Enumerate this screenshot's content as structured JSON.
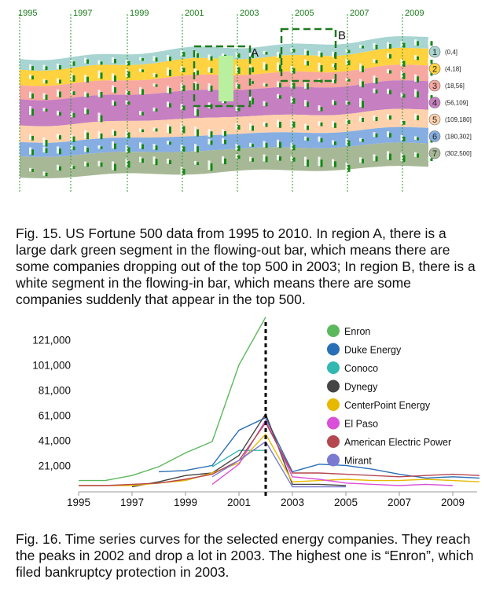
{
  "figure15": {
    "years": [
      "1995",
      "1997",
      "1999",
      "2001",
      "2003",
      "2005",
      "2007",
      "2009"
    ],
    "region_labels": [
      "A",
      "B"
    ],
    "legend": [
      {
        "num": "1",
        "range": "(0,4]",
        "color": "#a8d5d1"
      },
      {
        "num": "2",
        "range": "(4,18]",
        "color": "#ffd23f"
      },
      {
        "num": "3",
        "range": "(18,56]",
        "color": "#f7a8a0"
      },
      {
        "num": "4",
        "range": "(56,109]",
        "color": "#c67fc0"
      },
      {
        "num": "5",
        "range": "(109,180]",
        "color": "#ffd1ad"
      },
      {
        "num": "6",
        "range": "(180,302]",
        "color": "#86aee2"
      },
      {
        "num": "7",
        "range": "(302,500]",
        "color": "#a7b896"
      }
    ],
    "caption": "Fig. 15. US Fortune 500 data from 1995 to 2010. In region A, there is a large dark green segment in the flowing-out bar, which means there are some companies dropping out of the top 500 in 2003; In region B, there is a white segment in the flowing-in bar, which means there are some companies suddenly that appear in the top 500."
  },
  "chart_data": {
    "type": "line",
    "title": "",
    "xlabel": "",
    "ylabel": "",
    "x": [
      1995,
      1996,
      1997,
      1998,
      1999,
      2000,
      2001,
      2002,
      2003,
      2004,
      2005,
      2006,
      2007,
      2008,
      2009,
      2010
    ],
    "xticks": [
      "1995",
      "1997",
      "1999",
      "2001",
      "2003",
      "2005",
      "2007",
      "2009"
    ],
    "yticks": [
      "21,000",
      "41,000",
      "61,000",
      "81,000",
      "101,000",
      "121,000"
    ],
    "ylim": [
      0,
      135000
    ],
    "marker_year": 2002,
    "series": [
      {
        "name": "Enron",
        "color": "#5cb85c",
        "values": [
          9000,
          9000,
          13000,
          20000,
          31000,
          40000,
          101000,
          139000,
          null,
          null,
          null,
          null,
          null,
          null,
          null,
          null
        ]
      },
      {
        "name": "Duke Energy",
        "color": "#2a6fb5",
        "values": [
          null,
          null,
          null,
          16000,
          17000,
          21000,
          49000,
          59000,
          16000,
          22000,
          21000,
          18000,
          14000,
          11000,
          12000,
          11000
        ]
      },
      {
        "name": "Conoco",
        "color": "#32b8b0",
        "values": [
          null,
          null,
          null,
          null,
          null,
          20000,
          33000,
          33000,
          null,
          null,
          null,
          null,
          null,
          null,
          null,
          null
        ]
      },
      {
        "name": "Dynegy",
        "color": "#444444",
        "values": [
          null,
          null,
          4000,
          8000,
          13000,
          15000,
          29000,
          62000,
          6000,
          6000,
          5000,
          null,
          null,
          null,
          null,
          null
        ]
      },
      {
        "name": "CenterPoint Energy",
        "color": "#e6b800",
        "values": [
          5000,
          5000,
          5000,
          7000,
          9000,
          15000,
          23000,
          46000,
          8000,
          9000,
          10000,
          9000,
          9000,
          10000,
          9000,
          8000
        ]
      },
      {
        "name": "El Paso",
        "color": "#d94fd9",
        "values": [
          null,
          null,
          null,
          null,
          null,
          6000,
          22000,
          57000,
          12000,
          10000,
          7000,
          6000,
          5000,
          6000,
          5000,
          null
        ]
      },
      {
        "name": "American Electric Power",
        "color": "#b5474f",
        "values": [
          5000,
          5000,
          6000,
          7000,
          10000,
          14000,
          25000,
          55000,
          15000,
          15000,
          14000,
          13000,
          12000,
          13000,
          14000,
          13000
        ]
      },
      {
        "name": "Mirant",
        "color": "#7a7ad0",
        "values": [
          null,
          null,
          null,
          null,
          null,
          12000,
          25000,
          40000,
          4000,
          4000,
          4000,
          null,
          null,
          null,
          null,
          null
        ]
      }
    ]
  },
  "figure16": {
    "caption": "Fig. 16. Time series curves for the selected energy companies. They reach the peaks in 2002 and drop a lot in 2003. The highest one is “Enron”, which filed bankruptcy protection in 2003."
  }
}
